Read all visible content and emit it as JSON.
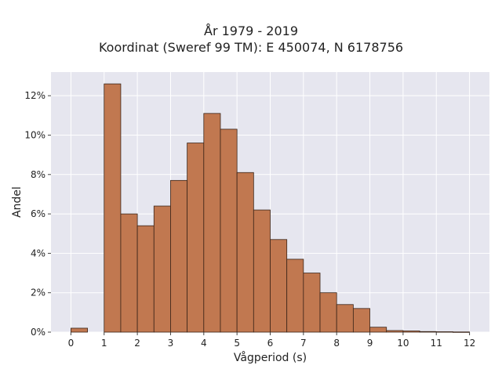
{
  "chart_data": {
    "type": "bar",
    "title": "År 1979 - 2019",
    "subtitle": "Koordinat (Sweref 99 TM): E 450074, N 6178756",
    "xlabel": "Vågperiod (s)",
    "ylabel": "Andel",
    "bin_width": 0.5,
    "bins": [
      {
        "x0": 0.0,
        "value": 0.2
      },
      {
        "x0": 0.5,
        "value": 0.0
      },
      {
        "x0": 1.0,
        "value": 12.6
      },
      {
        "x0": 1.5,
        "value": 6.0
      },
      {
        "x0": 2.0,
        "value": 5.4
      },
      {
        "x0": 2.5,
        "value": 6.4
      },
      {
        "x0": 3.0,
        "value": 7.7
      },
      {
        "x0": 3.5,
        "value": 9.6
      },
      {
        "x0": 4.0,
        "value": 11.1
      },
      {
        "x0": 4.5,
        "value": 10.3
      },
      {
        "x0": 5.0,
        "value": 8.1
      },
      {
        "x0": 5.5,
        "value": 6.2
      },
      {
        "x0": 6.0,
        "value": 4.7
      },
      {
        "x0": 6.5,
        "value": 3.7
      },
      {
        "x0": 7.0,
        "value": 3.0
      },
      {
        "x0": 7.5,
        "value": 2.0
      },
      {
        "x0": 8.0,
        "value": 1.4
      },
      {
        "x0": 8.5,
        "value": 1.2
      },
      {
        "x0": 9.0,
        "value": 0.25
      },
      {
        "x0": 9.5,
        "value": 0.08
      },
      {
        "x0": 10.0,
        "value": 0.06
      },
      {
        "x0": 10.5,
        "value": 0.03
      },
      {
        "x0": 11.0,
        "value": 0.02
      },
      {
        "x0": 11.5,
        "value": 0.01
      }
    ],
    "xlim": [
      -0.6,
      12.6
    ],
    "ylim": [
      0,
      13.2
    ],
    "x_ticks": [
      0,
      1,
      2,
      3,
      4,
      5,
      6,
      7,
      8,
      9,
      10,
      11,
      12
    ],
    "x_tick_labels": [
      "0",
      "1",
      "2",
      "3",
      "4",
      "5",
      "6",
      "7",
      "8",
      "9",
      "10",
      "11",
      "12"
    ],
    "y_ticks": [
      0,
      2,
      4,
      6,
      8,
      10,
      12
    ],
    "y_tick_labels": [
      "0%",
      "2%",
      "4%",
      "6%",
      "8%",
      "10%",
      "12%"
    ],
    "grid": true,
    "colors": {
      "bar_fill": "#c17850",
      "bar_stroke": "#3a2418",
      "plot_background": "#e6e6ef",
      "grid": "#ffffff"
    }
  }
}
